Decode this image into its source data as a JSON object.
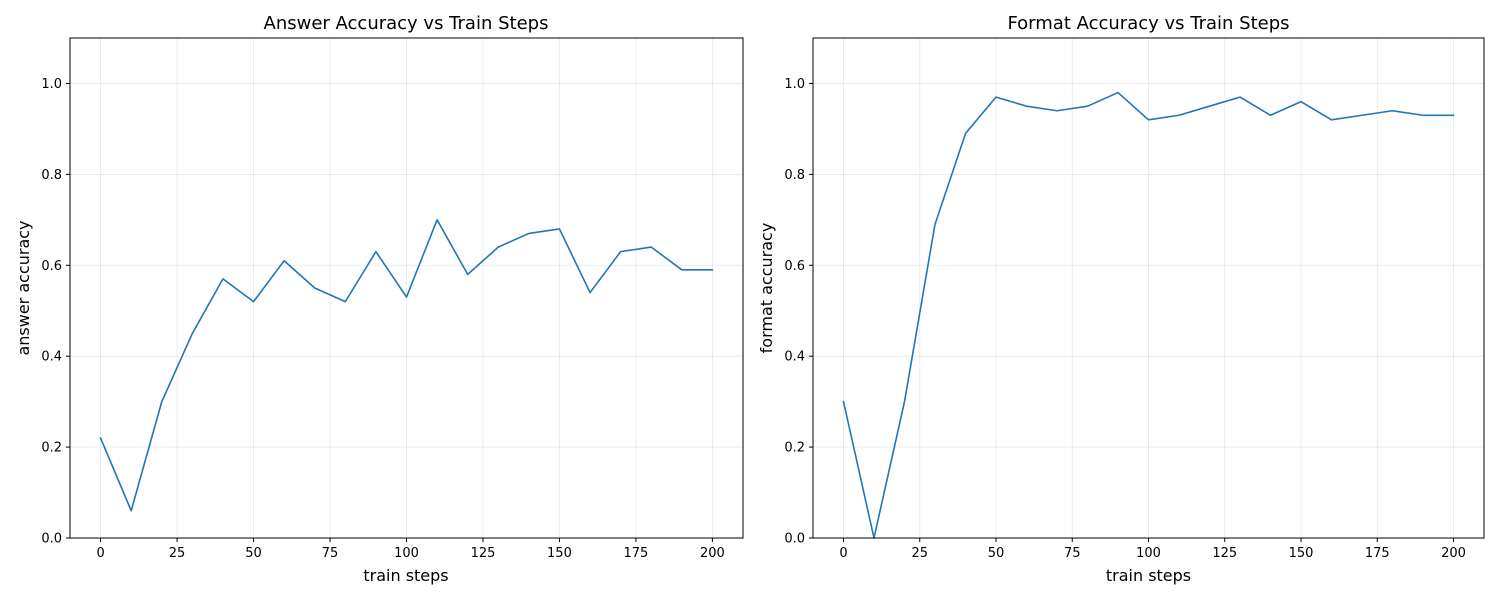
{
  "chart_data": [
    {
      "type": "line",
      "title": "Answer Accuracy vs Train Steps",
      "xlabel": "train steps",
      "ylabel": "answer accuracy",
      "xlim": [
        -10,
        210
      ],
      "ylim": [
        0,
        1.1
      ],
      "xticks": [
        0,
        25,
        50,
        75,
        100,
        125,
        150,
        175,
        200
      ],
      "xtick_labels": [
        "0",
        "25",
        "50",
        "75",
        "100",
        "125",
        "150",
        "175",
        "200"
      ],
      "yticks": [
        0.0,
        0.2,
        0.4,
        0.6,
        0.8,
        1.0
      ],
      "ytick_labels": [
        "0.0",
        "0.2",
        "0.4",
        "0.6",
        "0.8",
        "1.0"
      ],
      "grid": true,
      "x": [
        0,
        10,
        20,
        30,
        40,
        50,
        60,
        70,
        80,
        90,
        100,
        110,
        120,
        130,
        140,
        150,
        160,
        170,
        180,
        190,
        200
      ],
      "series": [
        {
          "color": "#1f77b4",
          "values": [
            0.22,
            0.06,
            0.3,
            0.45,
            0.57,
            0.52,
            0.61,
            0.55,
            0.52,
            0.63,
            0.53,
            0.7,
            0.58,
            0.64,
            0.67,
            0.68,
            0.54,
            0.63,
            0.64,
            0.59,
            0.59
          ]
        }
      ]
    },
    {
      "type": "line",
      "title": "Format Accuracy vs Train Steps",
      "xlabel": "train steps",
      "ylabel": "format accuracy",
      "xlim": [
        -10,
        210
      ],
      "ylim": [
        0,
        1.1
      ],
      "xticks": [
        0,
        25,
        50,
        75,
        100,
        125,
        150,
        175,
        200
      ],
      "xtick_labels": [
        "0",
        "25",
        "50",
        "75",
        "100",
        "125",
        "150",
        "175",
        "200"
      ],
      "yticks": [
        0.0,
        0.2,
        0.4,
        0.6,
        0.8,
        1.0
      ],
      "ytick_labels": [
        "0.0",
        "0.2",
        "0.4",
        "0.6",
        "0.8",
        "1.0"
      ],
      "grid": true,
      "x": [
        0,
        10,
        20,
        30,
        40,
        50,
        60,
        70,
        80,
        90,
        100,
        110,
        120,
        130,
        140,
        150,
        160,
        170,
        180,
        190,
        200
      ],
      "series": [
        {
          "color": "#1f77b4",
          "values": [
            0.3,
            0.0,
            0.3,
            0.69,
            0.89,
            0.97,
            0.95,
            0.94,
            0.95,
            0.98,
            0.92,
            0.93,
            0.95,
            0.97,
            0.93,
            0.96,
            0.92,
            0.93,
            0.94,
            0.93,
            0.93
          ]
        }
      ]
    }
  ]
}
